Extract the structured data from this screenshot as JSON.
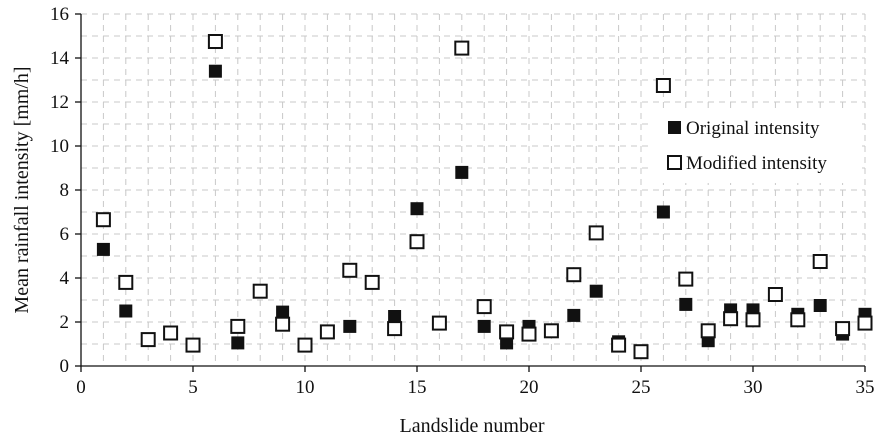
{
  "chart_data": {
    "type": "scatter",
    "xlabel": "Landslide number",
    "ylabel": "Mean rainfall intensity [mm/h]",
    "xlim": [
      0,
      35
    ],
    "ylim": [
      0,
      16
    ],
    "xticks": [
      0,
      5,
      10,
      15,
      20,
      25,
      30,
      35
    ],
    "yticks": [
      0,
      2,
      4,
      6,
      8,
      10,
      12,
      14,
      16
    ],
    "grid": true,
    "legend_position": "right",
    "series": [
      {
        "name": "Original intensity",
        "marker": "filled-square",
        "color": "#111111",
        "points": [
          [
            1,
            5.3
          ],
          [
            2,
            2.5
          ],
          [
            6,
            13.4
          ],
          [
            7,
            1.05
          ],
          [
            9,
            2.45
          ],
          [
            12,
            1.8
          ],
          [
            14,
            2.25
          ],
          [
            15,
            7.15
          ],
          [
            17,
            8.8
          ],
          [
            18,
            1.8
          ],
          [
            19,
            1.05
          ],
          [
            20,
            1.8
          ],
          [
            22,
            2.3
          ],
          [
            23,
            3.4
          ],
          [
            24,
            1.1
          ],
          [
            26,
            7.0
          ],
          [
            27,
            2.8
          ],
          [
            28,
            1.15
          ],
          [
            29,
            2.55
          ],
          [
            30,
            2.55
          ],
          [
            32,
            2.35
          ],
          [
            33,
            2.75
          ],
          [
            34,
            1.45
          ],
          [
            35,
            2.35
          ]
        ]
      },
      {
        "name": "Modified intensity",
        "marker": "open-square",
        "color": "#111111",
        "points": [
          [
            1,
            6.65
          ],
          [
            2,
            3.8
          ],
          [
            3,
            1.2
          ],
          [
            4,
            1.5
          ],
          [
            5,
            0.95
          ],
          [
            6,
            14.75
          ],
          [
            7,
            1.8
          ],
          [
            8,
            3.4
          ],
          [
            9,
            1.9
          ],
          [
            10,
            0.95
          ],
          [
            11,
            1.55
          ],
          [
            12,
            4.35
          ],
          [
            13,
            3.8
          ],
          [
            14,
            1.7
          ],
          [
            15,
            5.65
          ],
          [
            16,
            1.95
          ],
          [
            17,
            14.45
          ],
          [
            18,
            2.7
          ],
          [
            19,
            1.55
          ],
          [
            20,
            1.45
          ],
          [
            21,
            1.6
          ],
          [
            22,
            4.15
          ],
          [
            23,
            6.05
          ],
          [
            24,
            0.95
          ],
          [
            25,
            0.65
          ],
          [
            26,
            12.75
          ],
          [
            27,
            3.95
          ],
          [
            28,
            1.6
          ],
          [
            29,
            2.15
          ],
          [
            30,
            2.1
          ],
          [
            31,
            3.25
          ],
          [
            32,
            2.1
          ],
          [
            33,
            4.75
          ],
          [
            34,
            1.7
          ],
          [
            35,
            1.95
          ]
        ]
      }
    ]
  }
}
